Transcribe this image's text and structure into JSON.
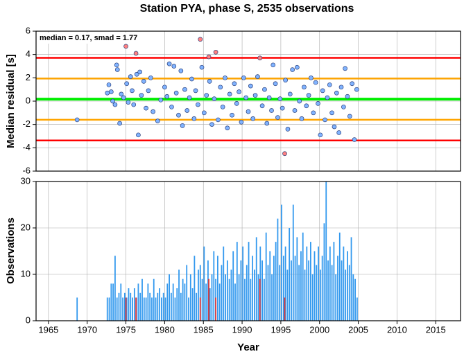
{
  "chart_data": [
    {
      "type": "scatter",
      "title": "Station PYA, phase S, 2535 observations",
      "ylabel": "Median residual [s]",
      "annotation": "median = 0.17, smad = 1.77",
      "xlim": [
        1963.4,
        2018.2
      ],
      "xticks": [
        1965,
        1970,
        1975,
        1980,
        1985,
        1990,
        1995,
        2000,
        2005,
        2010,
        2015
      ],
      "ylim": [
        -6,
        6
      ],
      "yticks": [
        -6,
        -4,
        -2,
        0,
        2,
        4,
        6
      ],
      "grid": true,
      "hlines": [
        {
          "value": 3.71,
          "color": "#ff0000"
        },
        {
          "value": 1.94,
          "color": "#ffa500"
        },
        {
          "value": 0.17,
          "color": "#00ee00"
        },
        {
          "value": -1.6,
          "color": "#ffa500"
        },
        {
          "value": -3.37,
          "color": "#ff0000"
        }
      ],
      "series": [
        {
          "color": "#80b3ff",
          "x": [
            1968.7,
            1972.6,
            1972.8,
            1973.1,
            1973.3,
            1973.6,
            1973.8,
            1973.9,
            1974.2,
            1974.4,
            1974.7,
            1975.1,
            1975.3,
            1975.6,
            1975.8,
            1976.0,
            1976.4,
            1976.6,
            1976.8,
            1977.0,
            1977.3,
            1977.6,
            1977.9,
            1978.2,
            1978.5,
            1979.1,
            1979.5,
            1980.0,
            1980.3,
            1980.6,
            1980.9,
            1981.2,
            1981.5,
            1981.8,
            1982.1,
            1982.3,
            1982.6,
            1982.9,
            1983.2,
            1983.5,
            1983.8,
            1984.0,
            1984.3,
            1984.8,
            1985.1,
            1985.4,
            1985.8,
            1986.1,
            1986.4,
            1986.9,
            1987.2,
            1987.5,
            1987.8,
            1988.1,
            1988.4,
            1988.7,
            1989.0,
            1989.3,
            1989.6,
            1989.9,
            1990.2,
            1990.5,
            1990.8,
            1991.1,
            1991.4,
            1991.7,
            1992.0,
            1992.6,
            1992.9,
            1993.2,
            1993.5,
            1993.8,
            1994.0,
            1994.3,
            1994.6,
            1994.9,
            1995.2,
            1995.6,
            1995.9,
            1996.2,
            1996.5,
            1996.8,
            1997.1,
            1997.4,
            1997.7,
            1998.0,
            1998.3,
            1998.6,
            1998.9,
            1999.2,
            1999.5,
            1999.8,
            2000.1,
            2000.4,
            2000.7,
            2001.0,
            2001.3,
            2001.6,
            2001.9,
            2002.2,
            2002.5,
            2002.8,
            2003.1,
            2003.3,
            2003.6,
            2003.9,
            2004.2,
            2004.5,
            2004.8
          ],
          "values": [
            -1.6,
            0.7,
            1.4,
            0.8,
            0.0,
            -0.3,
            3.1,
            2.7,
            -1.9,
            0.6,
            0.3,
            1.5,
            -0.1,
            2.1,
            0.9,
            -0.3,
            2.3,
            -2.9,
            2.5,
            0.5,
            1.7,
            -0.6,
            0.9,
            2.0,
            -0.9,
            -1.7,
            0.1,
            1.2,
            0.4,
            3.2,
            -0.5,
            3.0,
            0.7,
            -1.2,
            2.6,
            -2.1,
            1.0,
            -0.8,
            0.3,
            1.9,
            -1.5,
            0.9,
            -0.3,
            2.9,
            -1.0,
            0.5,
            1.7,
            -2.0,
            0.2,
            -1.6,
            1.2,
            -0.5,
            2.0,
            -2.3,
            0.6,
            -1.2,
            1.5,
            -0.2,
            0.8,
            -1.8,
            2.0,
            0.3,
            -0.9,
            1.3,
            -1.5,
            0.5,
            2.1,
            -0.4,
            1.0,
            -1.9,
            0.3,
            -0.8,
            3.1,
            1.5,
            -1.4,
            0.2,
            -0.6,
            1.8,
            -2.4,
            0.6,
            2.7,
            -0.8,
            2.9,
            0.0,
            -1.5,
            1.2,
            -0.4,
            0.5,
            2.0,
            -1.0,
            1.6,
            -0.2,
            -2.9,
            0.9,
            -1.6,
            0.3,
            1.4,
            -1.0,
            -2.2,
            0.7,
            -2.7,
            1.2,
            -0.5,
            2.8,
            0.4,
            -1.3,
            1.5,
            -3.3,
            1.0
          ]
        },
        {
          "color": "#ff8080",
          "x": [
            1975.0,
            1976.3,
            1984.6,
            1985.7,
            1986.6,
            1992.3,
            1995.5
          ],
          "values": [
            4.7,
            4.1,
            5.3,
            3.8,
            4.2,
            3.7,
            -4.5
          ]
        }
      ]
    },
    {
      "type": "bar",
      "xlabel": "Year",
      "ylabel": "Observations",
      "xlim": [
        1963.4,
        2018.2
      ],
      "xticks": [
        1965,
        1970,
        1975,
        1980,
        1985,
        1990,
        1995,
        2000,
        2005,
        2010,
        2015
      ],
      "ylim": [
        0,
        30
      ],
      "yticks": [
        0,
        10,
        20,
        30
      ],
      "grid": true,
      "series": [
        {
          "color": "#3399ee",
          "x": [
            1968.7,
            1972.6,
            1972.85,
            1973.1,
            1973.35,
            1973.6,
            1973.85,
            1974.1,
            1974.35,
            1974.6,
            1974.85,
            1975.1,
            1975.35,
            1975.6,
            1975.85,
            1976.1,
            1976.35,
            1976.6,
            1976.85,
            1977.1,
            1977.35,
            1977.6,
            1977.85,
            1978.1,
            1978.35,
            1978.6,
            1978.85,
            1979.1,
            1979.35,
            1979.6,
            1979.85,
            1980.1,
            1980.35,
            1980.6,
            1980.85,
            1981.1,
            1981.35,
            1981.6,
            1981.85,
            1982.1,
            1982.35,
            1982.6,
            1982.85,
            1983.1,
            1983.35,
            1983.6,
            1983.85,
            1984.1,
            1984.35,
            1984.6,
            1984.85,
            1985.1,
            1985.35,
            1985.6,
            1985.85,
            1986.1,
            1986.35,
            1986.6,
            1986.85,
            1987.1,
            1987.35,
            1987.6,
            1987.85,
            1988.1,
            1988.35,
            1988.6,
            1988.85,
            1989.1,
            1989.35,
            1989.6,
            1989.85,
            1990.1,
            1990.35,
            1990.6,
            1990.85,
            1991.1,
            1991.35,
            1991.6,
            1991.85,
            1992.1,
            1992.35,
            1992.6,
            1992.85,
            1993.1,
            1993.35,
            1993.6,
            1993.85,
            1994.1,
            1994.35,
            1994.6,
            1994.85,
            1995.1,
            1995.35,
            1995.6,
            1995.85,
            1996.1,
            1996.35,
            1996.6,
            1996.85,
            1997.1,
            1997.35,
            1997.6,
            1997.85,
            1998.1,
            1998.35,
            1998.6,
            1998.85,
            1999.1,
            1999.35,
            1999.6,
            1999.85,
            2000.1,
            2000.35,
            2000.6,
            2000.85,
            2001.1,
            2001.35,
            2001.6,
            2001.85,
            2002.1,
            2002.35,
            2002.6,
            2002.85,
            2003.1,
            2003.35,
            2003.6,
            2003.85,
            2004.1,
            2004.35,
            2004.6,
            2004.85
          ],
          "values": [
            5,
            5,
            5,
            8,
            8,
            14,
            5,
            6,
            8,
            5,
            6,
            5,
            7,
            6,
            5,
            7,
            5,
            8,
            6,
            9,
            5,
            5,
            8,
            6,
            5,
            9,
            5,
            6,
            7,
            5,
            6,
            5,
            8,
            10,
            6,
            8,
            5,
            7,
            11,
            6,
            9,
            8,
            12,
            5,
            10,
            7,
            14,
            6,
            11,
            12,
            9,
            16,
            8,
            13,
            7,
            10,
            15,
            9,
            14,
            8,
            12,
            16,
            10,
            13,
            9,
            11,
            15,
            8,
            17,
            10,
            13,
            16,
            9,
            12,
            17,
            9,
            14,
            11,
            18,
            10,
            16,
            13,
            9,
            19,
            12,
            15,
            10,
            14,
            17,
            22,
            12,
            25,
            14,
            16,
            11,
            20,
            13,
            25,
            14,
            18,
            12,
            15,
            19,
            11,
            16,
            13,
            17,
            10,
            15,
            12,
            16,
            11,
            14,
            21,
            30,
            13,
            16,
            12,
            17,
            10,
            14,
            19,
            13,
            16,
            11,
            15,
            12,
            18,
            10,
            9,
            5
          ]
        },
        {
          "color": "#dd3333",
          "x": [
            1975.0,
            1976.3,
            1984.6,
            1985.7,
            1986.6,
            1992.3,
            1995.5
          ],
          "values": [
            5,
            5,
            5,
            9,
            5,
            9,
            5
          ]
        }
      ]
    }
  ]
}
